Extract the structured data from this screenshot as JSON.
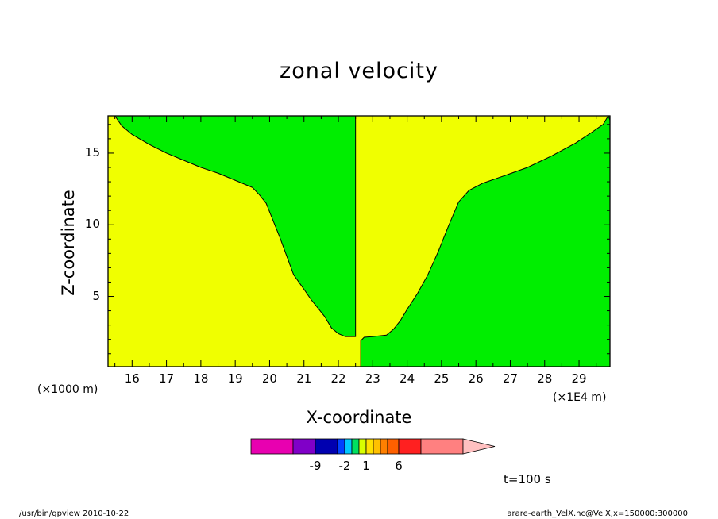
{
  "chart_data": {
    "type": "contour",
    "title": "zonal velocity",
    "xlabel": "X-coordinate",
    "ylabel": "Z-coordinate",
    "x_unit": "(×1E4 m)",
    "y_unit": "(×1000 m)",
    "xlim": [
      15.3,
      29.9
    ],
    "ylim": [
      0.1,
      17.6
    ],
    "x_ticks": [
      16,
      17,
      18,
      19,
      20,
      21,
      22,
      23,
      24,
      25,
      26,
      27,
      28,
      29
    ],
    "y_ticks": [
      5,
      10,
      15
    ],
    "regions": [
      {
        "color": "#f0ff00",
        "level_range": [
          0,
          1
        ]
      },
      {
        "color": "#00ee00",
        "level_range": [
          -1,
          0
        ]
      }
    ],
    "left_boundary": [
      [
        15.5,
        17.6
      ],
      [
        15.7,
        16.9
      ],
      [
        16,
        16.3
      ],
      [
        16.5,
        15.6
      ],
      [
        17,
        15
      ],
      [
        17.5,
        14.5
      ],
      [
        18,
        14
      ],
      [
        18.5,
        13.6
      ],
      [
        19,
        13.1
      ],
      [
        19.5,
        12.6
      ],
      [
        19.7,
        12.1
      ],
      [
        19.9,
        11.5
      ],
      [
        20.1,
        10.3
      ],
      [
        20.3,
        9.1
      ],
      [
        20.5,
        7.8
      ],
      [
        20.7,
        6.5
      ],
      [
        21,
        5.5
      ],
      [
        21.2,
        4.8
      ],
      [
        21.4,
        4.2
      ],
      [
        21.6,
        3.6
      ],
      [
        21.8,
        2.8
      ],
      [
        22.0,
        2.4
      ],
      [
        22.2,
        2.2
      ],
      [
        22.5,
        2.2
      ],
      [
        22.5,
        17.6
      ]
    ],
    "right_boundary": [
      [
        22.65,
        1.9
      ],
      [
        22.75,
        2.15
      ],
      [
        23.0,
        2.2
      ],
      [
        23.4,
        2.3
      ],
      [
        23.6,
        2.7
      ],
      [
        23.8,
        3.3
      ],
      [
        24.0,
        4.1
      ],
      [
        24.3,
        5.2
      ],
      [
        24.6,
        6.5
      ],
      [
        24.9,
        8.1
      ],
      [
        25.2,
        9.9
      ],
      [
        25.5,
        11.6
      ],
      [
        25.8,
        12.4
      ],
      [
        26.2,
        12.9
      ],
      [
        26.8,
        13.4
      ],
      [
        27.5,
        14
      ],
      [
        28.2,
        14.8
      ],
      [
        28.9,
        15.7
      ],
      [
        29.4,
        16.5
      ],
      [
        29.7,
        17
      ],
      [
        29.85,
        17.6
      ]
    ],
    "colorbar": {
      "colors": [
        "#e800b0",
        "#8000c8",
        "#0000b0",
        "#0040ff",
        "#00c8ff",
        "#00e060",
        "#d8ff00",
        "#ffe000",
        "#ffc000",
        "#ff8000",
        "#ff6000",
        "#ff2020",
        "#ff8080",
        "#ffc0c0"
      ],
      "tick_labels": [
        "-9",
        "-2",
        "1",
        "6"
      ]
    },
    "time_label": "t=100 s"
  },
  "footer": {
    "left": "/usr/bin/gpview  2010-10-22",
    "right": "arare-earth_VelX.nc@VelX,x=150000:300000"
  }
}
